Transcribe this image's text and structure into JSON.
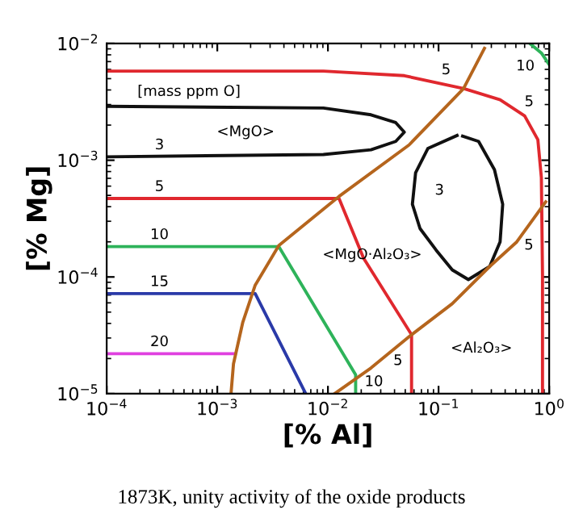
{
  "chart_data": {
    "type": "line",
    "xlabel": "[% Al]",
    "ylabel": "[% Mg]",
    "log": "xy",
    "xlim": [
      0.0001,
      1
    ],
    "ylim": [
      1e-05,
      0.01
    ],
    "xticks": [
      {
        "value": 0.0001,
        "label": "10$^{−4}$"
      },
      {
        "value": 0.001,
        "label": "10$^{−3}$"
      },
      {
        "value": 0.01,
        "label": "10$^{−2}$"
      },
      {
        "value": 0.1,
        "label": "10$^{−1}$"
      },
      {
        "value": 1,
        "label": "10$^{0}$"
      }
    ],
    "yticks": [
      {
        "value": 1e-05,
        "label": "10$^{−5}$"
      },
      {
        "value": 0.0001,
        "label": "10$^{−4}$"
      },
      {
        "value": 0.001,
        "label": "10$^{−3}$"
      },
      {
        "value": 0.01,
        "label": "10$^{−2}$"
      }
    ],
    "grid": false,
    "legend": false,
    "marker": "none",
    "line_style": "solid",
    "series": [
      {
        "color": "#e0282e",
        "x": [
          0.0001,
          0.0091,
          0.049,
          0.17,
          0.36,
          0.6,
          0.79,
          0.85,
          0.87,
          0.87
        ],
        "values": [
          0.0058,
          0.0058,
          0.0053,
          0.0041,
          0.0033,
          0.0024,
          0.0015,
          0.00071,
          0.000105,
          1e-05
        ]
      },
      {
        "color": "#111111",
        "x": [
          0.0001,
          0.0091,
          0.0245,
          0.041,
          0.049,
          0.041,
          0.0245,
          0.0091,
          0.0001
        ],
        "values": [
          0.0029,
          0.0028,
          0.00245,
          0.0021,
          0.00174,
          0.00145,
          0.00123,
          0.00112,
          0.00107
        ]
      },
      {
        "color": "#111111",
        "x": [
          0.147,
          0.08,
          0.062,
          0.058,
          0.068,
          0.095,
          0.133,
          0.186,
          0.29,
          0.36,
          0.38,
          0.32,
          0.23,
          0.165
        ],
        "values": [
          0.00163,
          0.00126,
          0.00078,
          0.00042,
          0.00026,
          0.00017,
          0.000115,
          9.5e-05,
          0.000123,
          0.0002,
          0.00042,
          0.00083,
          0.00145,
          0.00161
        ]
      },
      {
        "color": "#e0282e",
        "x": [
          0.0001,
          0.0126,
          0.021,
          0.057,
          0.057
        ],
        "values": [
          0.00047,
          0.00047,
          0.000145,
          3.2e-05,
          1e-05
        ]
      },
      {
        "color": "#2eb35a",
        "x": [
          0.0001,
          0.0036,
          0.0178,
          0.0178
        ],
        "values": [
          0.000182,
          0.000182,
          1.45e-05,
          1e-05
        ]
      },
      {
        "color": "#2eb35a",
        "x": [
          0.67,
          0.85,
          1.0
        ],
        "values": [
          0.01,
          0.0083,
          0.0066
        ]
      },
      {
        "color": "#2a3aa8",
        "x": [
          0.0001,
          0.0022,
          0.0063
        ],
        "values": [
          7.2e-05,
          7.2e-05,
          1e-05
        ]
      },
      {
        "color": "#e040e0",
        "x": [
          0.0001,
          0.0014
        ],
        "values": [
          2.2e-05,
          2.2e-05
        ]
      },
      {
        "color": "#b5651d",
        "x": [
          0.00133,
          0.0014,
          0.0017,
          0.0022,
          0.0036,
          0.0126,
          0.054,
          0.168,
          0.26
        ],
        "values": [
          1e-05,
          1.8e-05,
          4.1e-05,
          8.5e-05,
          0.000186,
          0.00049,
          0.00135,
          0.0041,
          0.0091
        ]
      },
      {
        "color": "#b5651d",
        "x": [
          0.0115,
          0.0245,
          0.057,
          0.133,
          0.29,
          0.51,
          0.93
        ],
        "values": [
          1e-05,
          1.66e-05,
          3.2e-05,
          5.9e-05,
          0.000123,
          0.0002,
          0.00044
        ]
      }
    ],
    "annotations": [
      {
        "text": "5",
        "x": 0.117,
        "y": 0.0045
      },
      {
        "text": "5",
        "x": 0.6,
        "y": 0.0024
      },
      {
        "text": "3",
        "x": 0.0003,
        "y": 0.00107
      },
      {
        "text": "5",
        "x": 0.0003,
        "y": 0.00047
      },
      {
        "text": "10",
        "x": 0.0003,
        "y": 0.000182
      },
      {
        "text": "5",
        "x": 0.87,
        "y": 0.000186
      },
      {
        "text": "15",
        "x": 0.0003,
        "y": 7.2e-05
      },
      {
        "text": "20",
        "x": 0.0003,
        "y": 2.2e-05
      },
      {
        "text": "5",
        "x": 0.057,
        "y": 1.66e-05
      },
      {
        "text": "10",
        "x": 0.0178,
        "y": 1.26e-05
      },
      {
        "text": "10",
        "x": 0.85,
        "y": 0.0083
      },
      "[mass ppm O]",
      "<MgO>",
      "<MgO·Al₂O₃>",
      "<Al₂O₃>",
      "3",
      "1873K, unity activity of the oxide products"
    ]
  }
}
